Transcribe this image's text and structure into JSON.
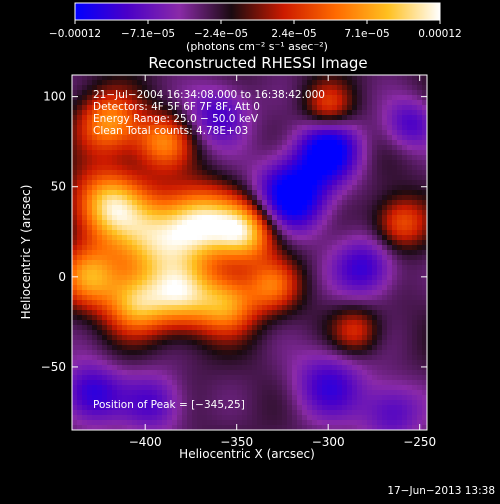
{
  "chart_data": {
    "type": "heatmap",
    "title": "Reconstructed RHESSI Image",
    "xlabel": "Heliocentric X (arcsec)",
    "ylabel": "Heliocentric Y (arcsec)",
    "xlim": [
      -440,
      -246
    ],
    "ylim": [
      -85,
      112
    ],
    "x_ticks": [
      -400,
      -350,
      -300,
      -250
    ],
    "x_tick_labels": [
      "−400",
      "−350",
      "−300",
      "−250"
    ],
    "y_ticks": [
      100,
      50,
      0,
      -50
    ],
    "y_tick_labels": [
      "100",
      "50",
      "0",
      "−50"
    ],
    "colorbar": {
      "range": [
        -0.00012,
        0.00012
      ],
      "tick_labels": [
        "−0.00012",
        "−7.1e−05",
        "−2.4e−05",
        "2.4e−05",
        "7.1e−05",
        "0.00012"
      ],
      "tick_fractions": [
        0,
        0.2,
        0.4,
        0.6,
        0.8,
        1.0
      ],
      "unit_label": "(photons cm⁻² s⁻¹ asec⁻²)",
      "colors": [
        "#0000ff",
        "#4a00c8",
        "#8a2aa8",
        "#1a0a10",
        "#cc1a00",
        "#ff6a00",
        "#ffc020",
        "#ffffff"
      ]
    },
    "annotations": [
      "21−Jul−2004 16:34:08.000 to 16:38:42.000",
      "Detectors: 4F 5F 6F 7F 8F, Att 0",
      "Energy Range: 25.0 − 50.0 keV",
      "Clean     Total counts: 4.78E+03"
    ],
    "peak_label": "Position of Peak = [−345,25]",
    "sources": [
      {
        "x": -420,
        "y": 40,
        "amp": 1.0,
        "s": 14
      },
      {
        "x": -395,
        "y": 20,
        "amp": 0.9,
        "s": 16
      },
      {
        "x": -370,
        "y": 30,
        "amp": 1.0,
        "s": 14
      },
      {
        "x": -345,
        "y": 25,
        "amp": 1.0,
        "s": 12
      },
      {
        "x": -380,
        "y": -10,
        "amp": 0.9,
        "s": 13
      },
      {
        "x": -405,
        "y": -15,
        "amp": 0.85,
        "s": 12
      },
      {
        "x": -430,
        "y": 0,
        "amp": 0.8,
        "s": 12
      },
      {
        "x": -355,
        "y": -15,
        "amp": 0.8,
        "s": 12
      },
      {
        "x": -420,
        "y": 85,
        "amp": 0.8,
        "s": 12
      },
      {
        "x": -390,
        "y": 75,
        "amp": 0.7,
        "s": 11
      },
      {
        "x": -330,
        "y": -5,
        "amp": 0.6,
        "s": 10
      },
      {
        "x": -260,
        "y": 30,
        "amp": 0.6,
        "s": 10
      },
      {
        "x": -285,
        "y": -30,
        "amp": 0.45,
        "s": 9
      },
      {
        "x": -300,
        "y": 95,
        "amp": 0.5,
        "s": 9
      },
      {
        "x": -320,
        "y": 45,
        "amp": -0.9,
        "s": 14
      },
      {
        "x": -300,
        "y": 70,
        "amp": -0.8,
        "s": 12
      },
      {
        "x": -280,
        "y": 5,
        "amp": -0.55,
        "s": 12
      },
      {
        "x": -300,
        "y": -60,
        "amp": -0.5,
        "s": 14
      },
      {
        "x": -360,
        "y": 90,
        "amp": -0.5,
        "s": 12
      },
      {
        "x": -430,
        "y": -65,
        "amp": -0.6,
        "s": 12
      },
      {
        "x": -395,
        "y": -70,
        "amp": -0.45,
        "s": 12
      },
      {
        "x": -265,
        "y": -75,
        "amp": -0.45,
        "s": 12
      },
      {
        "x": -255,
        "y": 85,
        "amp": -0.45,
        "s": 10
      }
    ]
  },
  "footer": {
    "timestamp": "17−Jun−2013 13:38"
  }
}
